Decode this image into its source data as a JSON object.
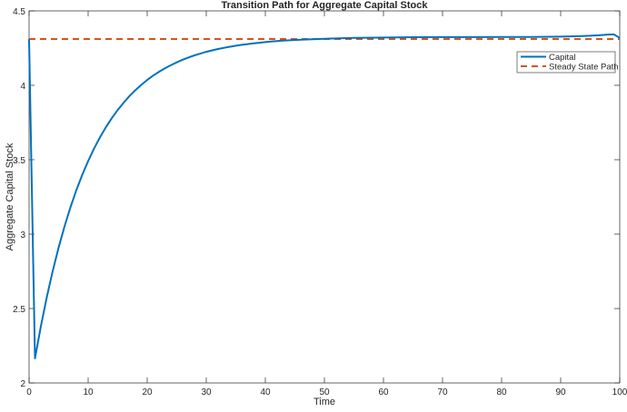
{
  "chart_data": {
    "type": "line",
    "title": "Transition Path for Aggregate Capital Stock",
    "xlabel": "Time",
    "ylabel": "Aggregate Capital Stock",
    "xlim": [
      0,
      100
    ],
    "ylim": [
      2,
      4.5
    ],
    "xticks": [
      0,
      10,
      20,
      30,
      40,
      50,
      60,
      70,
      80,
      90,
      100
    ],
    "yticks": [
      2,
      2.5,
      3,
      3.5,
      4,
      4.5
    ],
    "ytick_labels": [
      "2",
      "2.5",
      "3",
      "3.5",
      "4",
      "4.5"
    ],
    "grid": false,
    "legend_position": "top-right",
    "series": [
      {
        "name": "Capital",
        "color": "#0072BD",
        "style": "solid",
        "x": [
          0,
          1,
          2,
          3,
          4,
          5,
          6,
          7,
          8,
          9,
          10,
          11,
          12,
          13,
          14,
          15,
          16,
          17,
          18,
          19,
          20,
          21,
          22,
          23,
          24,
          25,
          26,
          27,
          28,
          29,
          30,
          31,
          32,
          33,
          34,
          35,
          36,
          37,
          38,
          39,
          40,
          41,
          43,
          46,
          51,
          55,
          60,
          65,
          70,
          75,
          80,
          85,
          90,
          93,
          95,
          97,
          98,
          99,
          100
        ],
        "y": [
          4.31,
          2.165,
          2.382,
          2.577,
          2.752,
          2.91,
          3.052,
          3.18,
          3.295,
          3.398,
          3.491,
          3.575,
          3.65,
          3.718,
          3.779,
          3.834,
          3.883,
          3.928,
          3.967,
          4.003,
          4.036,
          4.065,
          4.091,
          4.114,
          4.135,
          4.154,
          4.172,
          4.187,
          4.201,
          4.213,
          4.225,
          4.235,
          4.244,
          4.252,
          4.259,
          4.266,
          4.272,
          4.277,
          4.282,
          4.286,
          4.29,
          4.294,
          4.3,
          4.306,
          4.314,
          4.318,
          4.321,
          4.323,
          4.324,
          4.324,
          4.325,
          4.325,
          4.327,
          4.33,
          4.333,
          4.338,
          4.341,
          4.342,
          4.318
        ]
      },
      {
        "name": "Steady State Path",
        "color": "#D95319",
        "style": "dashed",
        "x": [
          0,
          100
        ],
        "y": [
          4.311,
          4.311
        ]
      }
    ]
  }
}
